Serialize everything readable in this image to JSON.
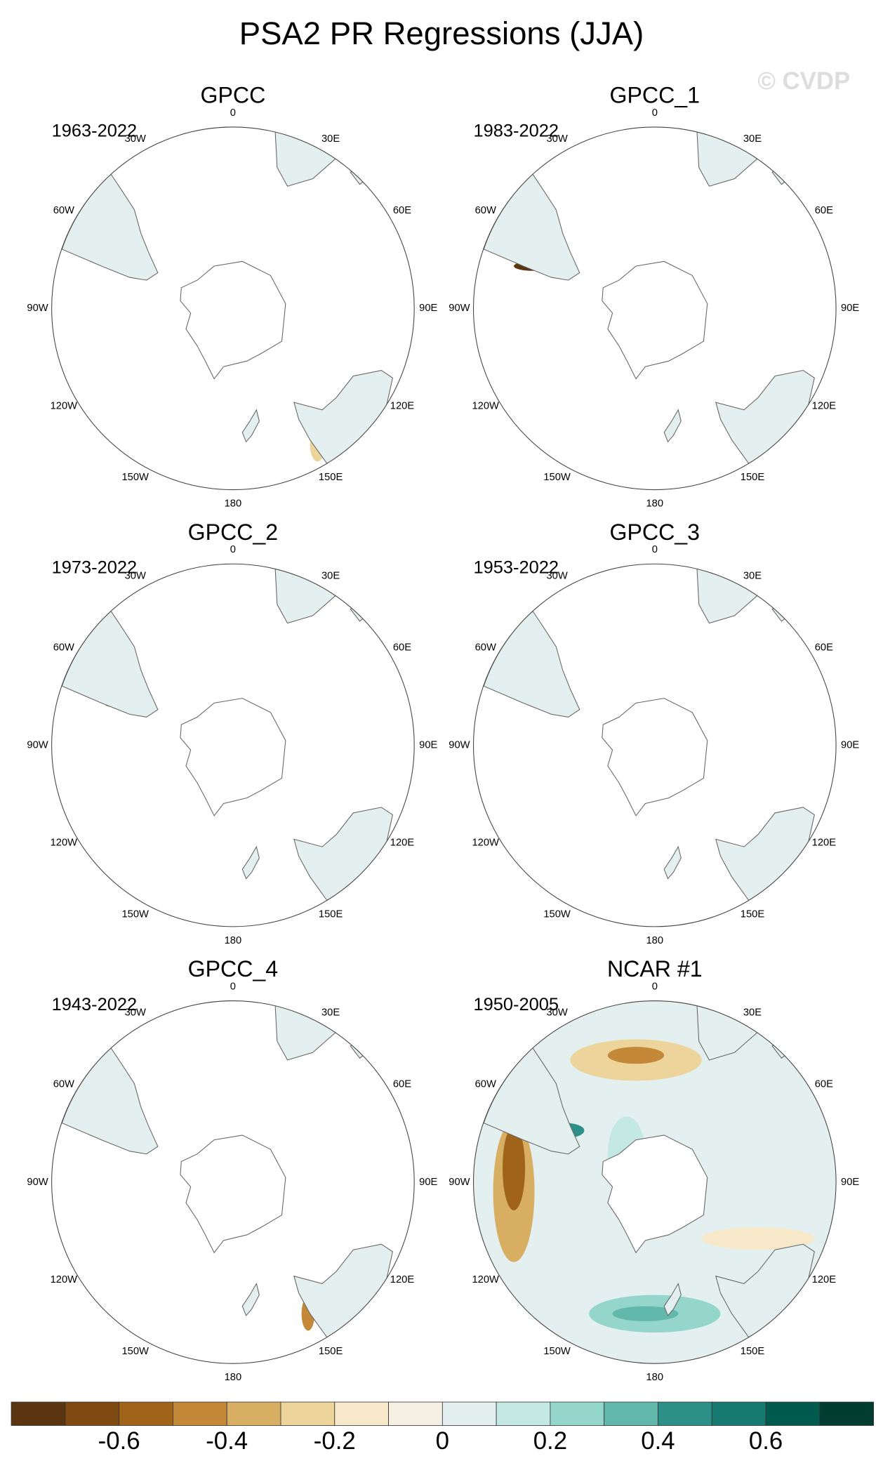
{
  "chart_data": {
    "type": "polar-map-panels",
    "title": "PSA2 PR Regressions (JJA)",
    "watermark": "© CVDP",
    "panels": [
      {
        "title": "GPCC",
        "period": "1963-2022"
      },
      {
        "title": "GPCC_1",
        "period": "1983-2022"
      },
      {
        "title": "GPCC_2",
        "period": "1973-2022"
      },
      {
        "title": "GPCC_3",
        "period": "1953-2022"
      },
      {
        "title": "GPCC_4",
        "period": "1943-2022"
      },
      {
        "title": "NCAR #1",
        "period": "1950-2005"
      }
    ],
    "longitude_labels": [
      "0",
      "30E",
      "60E",
      "90E",
      "120E",
      "150E",
      "180",
      "150W",
      "120W",
      "90W",
      "60W",
      "30W"
    ],
    "colorbar": {
      "colors": [
        "#5a3510",
        "#7f4a12",
        "#9f6419",
        "#c38838",
        "#d8ae62",
        "#ecd49a",
        "#f6e8c8",
        "#f5f0e4",
        "#e3f0ef",
        "#c4e8e2",
        "#94d6cb",
        "#62b8ac",
        "#2d9088",
        "#177a70",
        "#005a4e",
        "#003c30"
      ],
      "xlim": [
        -0.8,
        0.8
      ],
      "xticks": [
        -0.6,
        -0.4,
        -0.2,
        0,
        0.2,
        0.4,
        0.6
      ]
    }
  }
}
